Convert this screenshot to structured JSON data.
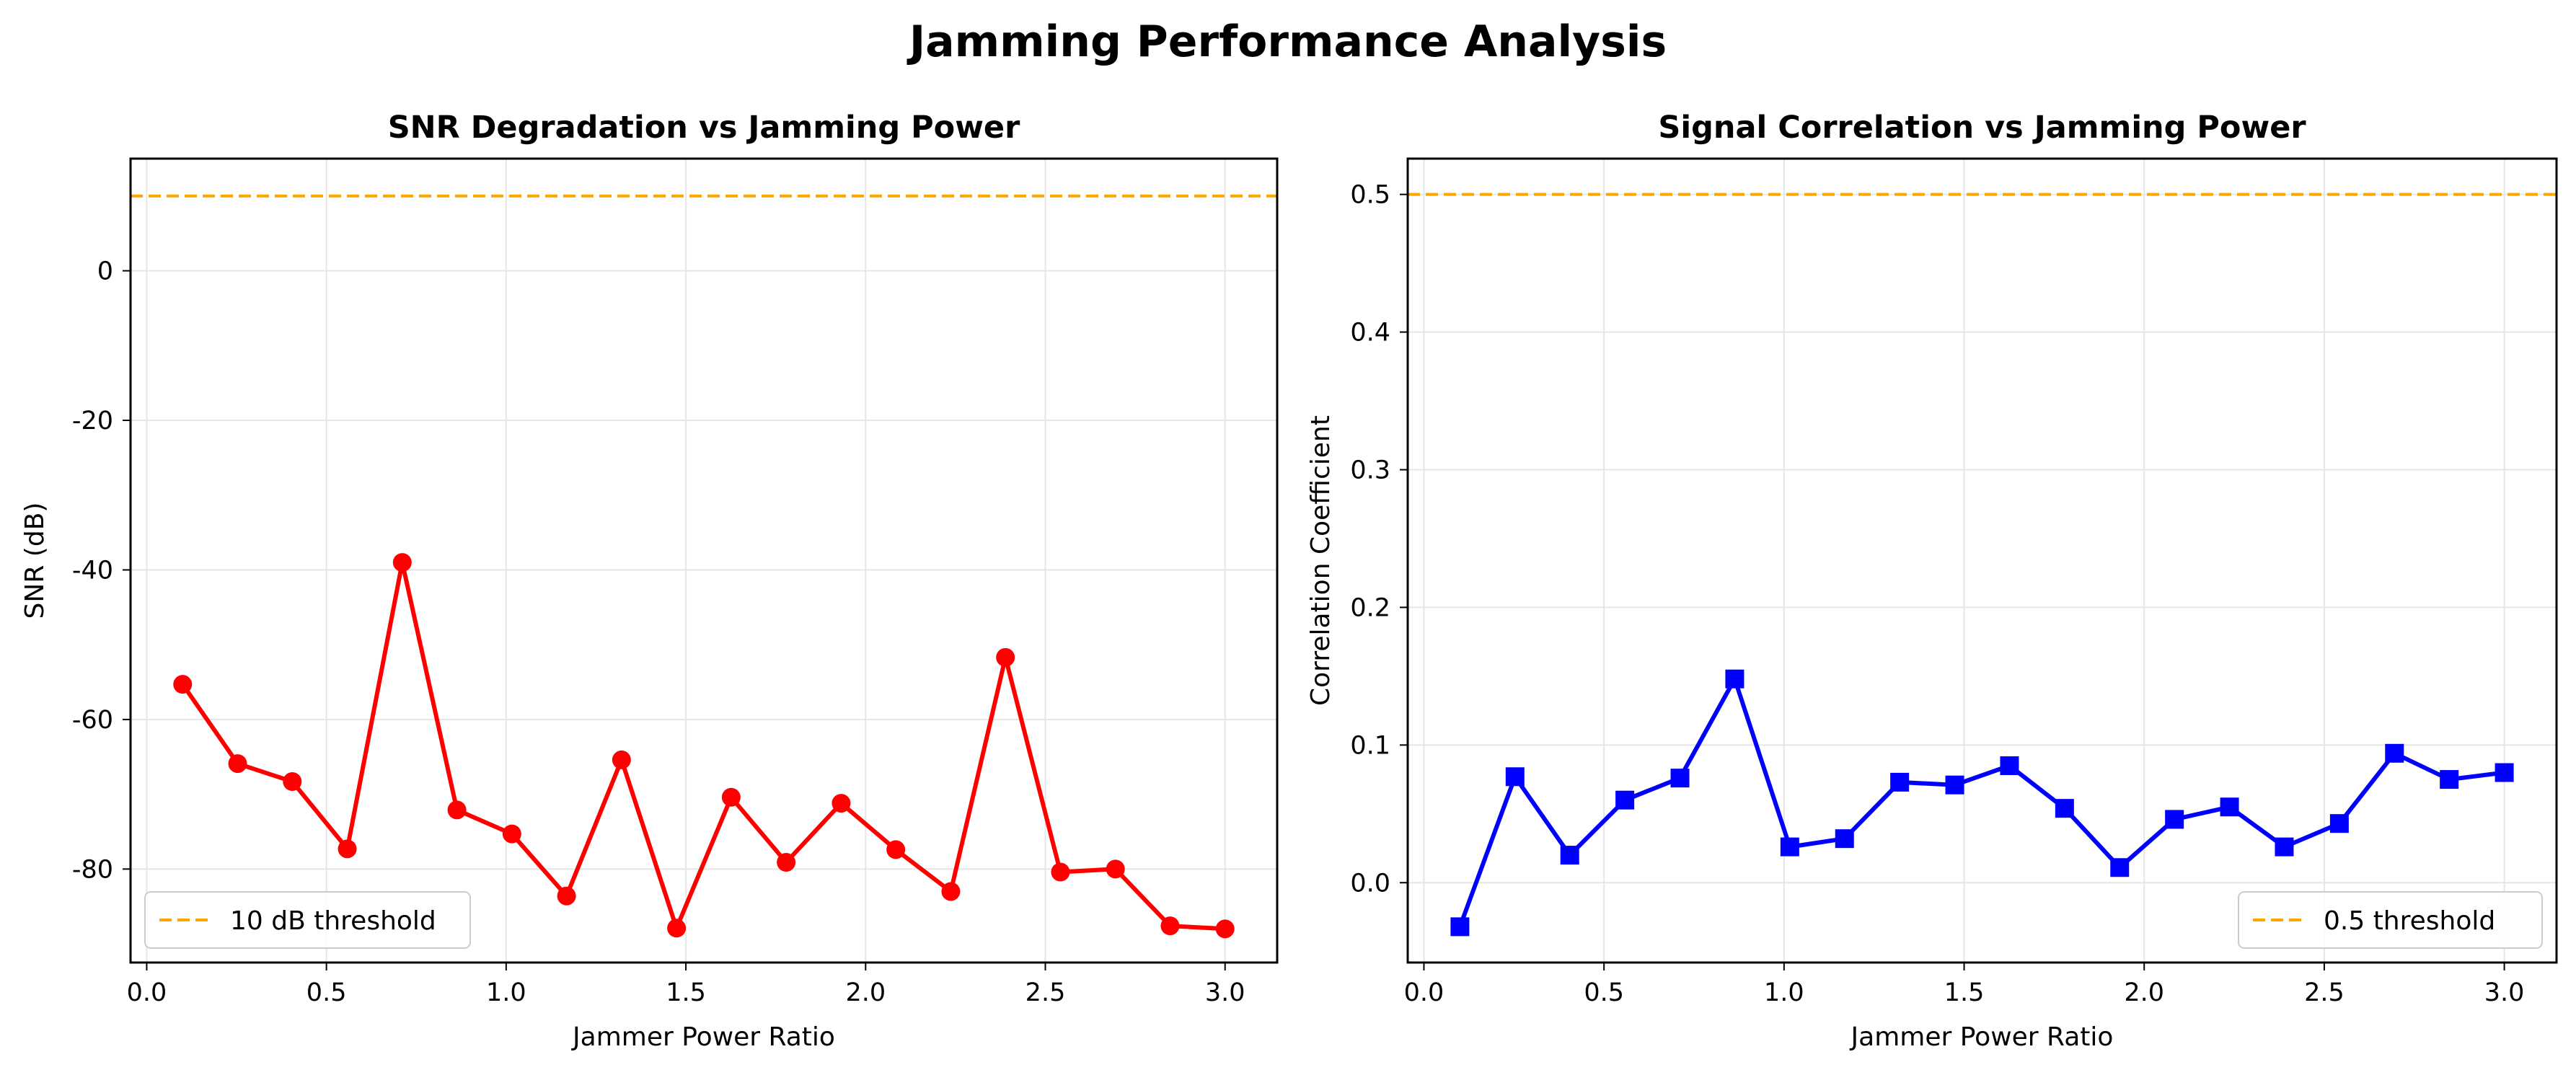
{
  "figure": {
    "title": "Jamming Performance Analysis"
  },
  "colors": {
    "snr_line": "#ff0000",
    "corr_line": "#0000ff",
    "threshold": "#ffa500",
    "grid": "#e6e6e6",
    "legend_border": "#cccccc"
  },
  "chart_data": [
    {
      "type": "line",
      "title": "SNR Degradation vs Jamming Power",
      "xlabel": "Jammer Power Ratio",
      "ylabel": "SNR (dB)",
      "xlim": [
        -0.045,
        3.145
      ],
      "ylim": [
        -92.5,
        15
      ],
      "xticks": [
        0.0,
        0.5,
        1.0,
        1.5,
        2.0,
        2.5,
        3.0
      ],
      "xtick_labels": [
        "0.0",
        "0.5",
        "1.0",
        "1.5",
        "2.0",
        "2.5",
        "3.0"
      ],
      "yticks": [
        0,
        -20,
        -40,
        -60,
        -80
      ],
      "ytick_labels": [
        "0",
        "-20",
        "-40",
        "-60",
        "-80"
      ],
      "grid": true,
      "marker": "circle",
      "x": [
        0.1,
        0.253,
        0.405,
        0.558,
        0.711,
        0.863,
        1.016,
        1.168,
        1.321,
        1.474,
        1.626,
        1.779,
        1.932,
        2.084,
        2.237,
        2.389,
        2.542,
        2.695,
        2.847,
        3.0
      ],
      "y": [
        -55.3,
        -65.9,
        -68.3,
        -77.3,
        -39.0,
        -72.1,
        -75.3,
        -83.6,
        -65.4,
        -87.9,
        -70.4,
        -79.1,
        -71.2,
        -77.4,
        -83.0,
        -51.7,
        -80.4,
        -80.0,
        -87.6,
        -88.0
      ],
      "threshold": {
        "value": 10,
        "label": "10 dB threshold"
      },
      "legend_position": "lower-left"
    },
    {
      "type": "line",
      "title": "Signal Correlation vs Jamming Power",
      "xlabel": "Jammer Power Ratio",
      "ylabel": "Correlation Coefficient",
      "xlim": [
        -0.045,
        3.145
      ],
      "ylim": [
        -0.058,
        0.526
      ],
      "xticks": [
        0.0,
        0.5,
        1.0,
        1.5,
        2.0,
        2.5,
        3.0
      ],
      "xtick_labels": [
        "0.0",
        "0.5",
        "1.0",
        "1.5",
        "2.0",
        "2.5",
        "3.0"
      ],
      "yticks": [
        0.0,
        0.1,
        0.2,
        0.3,
        0.4,
        0.5
      ],
      "ytick_labels": [
        "0.0",
        "0.1",
        "0.2",
        "0.3",
        "0.4",
        "0.5"
      ],
      "grid": true,
      "marker": "square",
      "x": [
        0.1,
        0.253,
        0.405,
        0.558,
        0.711,
        0.863,
        1.016,
        1.168,
        1.321,
        1.474,
        1.626,
        1.779,
        1.932,
        2.084,
        2.237,
        2.389,
        2.542,
        2.695,
        2.847,
        3.0
      ],
      "y": [
        -0.032,
        0.077,
        0.02,
        0.06,
        0.076,
        0.148,
        0.026,
        0.032,
        0.073,
        0.071,
        0.085,
        0.054,
        0.011,
        0.046,
        0.055,
        0.026,
        0.043,
        0.094,
        0.075,
        0.08
      ],
      "threshold": {
        "value": 0.5,
        "label": "0.5 threshold"
      },
      "legend_position": "lower-right"
    }
  ]
}
